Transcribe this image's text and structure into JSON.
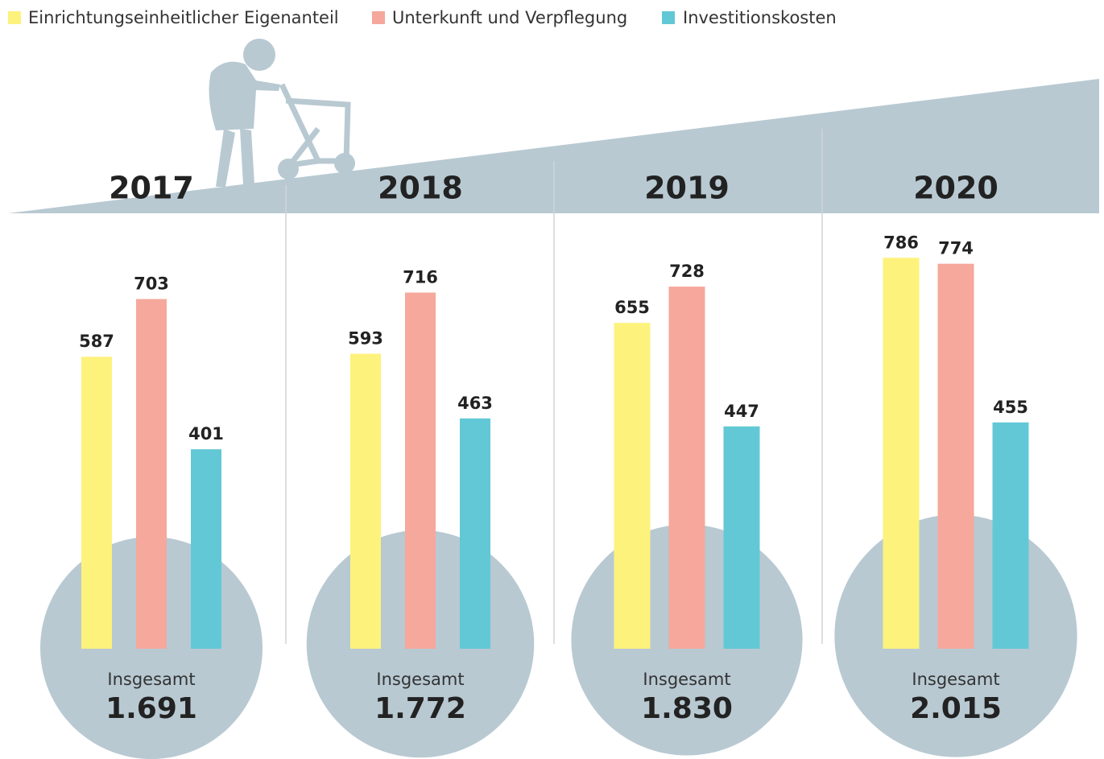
{
  "chart_data": {
    "type": "bar",
    "categories": [
      "2017",
      "2018",
      "2019",
      "2020"
    ],
    "series": [
      {
        "name": "Einrichtungseinheitlicher Eigenanteil",
        "color": "#fdf27c",
        "values": [
          587,
          593,
          655,
          786
        ]
      },
      {
        "name": "Unterkunft und Verpflegung",
        "color": "#f5a89b",
        "values": [
          703,
          716,
          728,
          774
        ]
      },
      {
        "name": "Investitionskosten",
        "color": "#62c8d6",
        "values": [
          401,
          463,
          447,
          455
        ]
      }
    ],
    "total_label": "Insgesamt",
    "totals": [
      {
        "value": 1691,
        "label": "1.691"
      },
      {
        "value": 1772,
        "label": "1.772"
      },
      {
        "value": 1830,
        "label": "1.830"
      },
      {
        "value": 2015,
        "label": "2.015"
      }
    ]
  }
}
